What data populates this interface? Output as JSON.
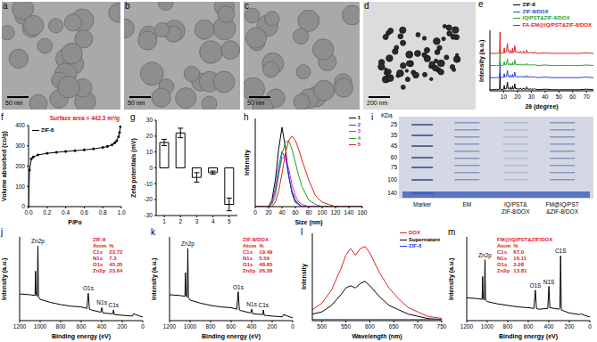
{
  "images": [
    {
      "label": "a",
      "scale_bar": "50 nm"
    },
    {
      "label": "b",
      "scale_bar": "50 nm"
    },
    {
      "label": "c",
      "scale_bar": "50 nm"
    },
    {
      "label": "d",
      "scale_bar": "200 nm"
    }
  ],
  "gel": {
    "label": "i",
    "unit": "KDa",
    "marker": [
      "25",
      "35",
      "45",
      "60",
      "75",
      "100",
      "140"
    ],
    "lanes": [
      "Marker",
      "EM",
      "IQ/PST&\nZIF-8/DOX",
      "FM@IQ/PST\n&ZIF-8/DOX"
    ]
  },
  "chart_data": [
    {
      "label": "e",
      "type": "line",
      "xlabel": "2θ (degree)",
      "ylabel": "Intensity (a.u.)",
      "legend": "top right",
      "tick_labels": "x",
      "xlim": [
        0,
        75
      ],
      "xticks": [
        10,
        20,
        30,
        40,
        50,
        60,
        70
      ],
      "ylim": [
        0,
        110
      ],
      "x": [
        0,
        5,
        6,
        7,
        7.3,
        7.6,
        8.5,
        10,
        10.4,
        10.8,
        12,
        12.7,
        13.2,
        14.2,
        14.7,
        15.2,
        16,
        16.4,
        16.8,
        17.5,
        18,
        18.5,
        21.5,
        22.1,
        22.7,
        24,
        24.5,
        25,
        26.2,
        26.7,
        27.2,
        29.1,
        29.6,
        30.1,
        32,
        32.4,
        32.8,
        35,
        40,
        45,
        50,
        55,
        60,
        65,
        70,
        75
      ],
      "series": [
        {
          "name": "ZIF-8",
          "color": "#000000",
          "values": [
            2,
            2,
            2,
            3,
            32,
            3,
            2,
            3,
            10,
            3,
            4,
            16,
            4,
            3,
            7,
            3,
            3,
            9,
            3,
            4,
            13,
            4,
            3,
            5,
            3,
            3,
            5,
            3,
            3,
            7,
            3,
            3,
            4,
            3,
            3,
            4,
            3,
            2,
            3,
            2,
            2,
            2,
            2,
            2,
            3,
            2
          ]
        },
        {
          "name": "ZIF-8/DOX",
          "color": "#2a3fd8",
          "values": [
            24,
            24,
            24,
            25,
            52,
            25,
            24,
            25,
            31,
            25,
            26,
            37,
            26,
            25,
            29,
            25,
            25,
            30,
            25,
            26,
            34,
            26,
            25,
            27,
            25,
            25,
            27,
            25,
            25,
            28,
            25,
            25,
            26,
            25,
            25,
            26,
            25,
            24,
            25,
            24,
            24,
            24,
            24,
            24,
            25,
            24
          ]
        },
        {
          "name": "IQ/PST&ZIF-8/DOX",
          "color": "#2ca02c",
          "values": [
            46,
            46,
            46,
            47,
            73,
            47,
            46,
            47,
            53,
            47,
            48,
            58,
            48,
            47,
            50,
            47,
            47,
            52,
            47,
            48,
            56,
            48,
            47,
            49,
            47,
            47,
            49,
            47,
            47,
            50,
            47,
            47,
            48,
            47,
            47,
            48,
            47,
            46,
            47,
            46,
            46,
            46,
            46,
            46,
            47,
            46
          ]
        },
        {
          "name": "FA-EM@IQ/PST&ZIF-8/DOX",
          "color": "#e0201a",
          "values": [
            68,
            68,
            68,
            69,
            107,
            69,
            68,
            69,
            78,
            69,
            71,
            86,
            71,
            69,
            74,
            69,
            69,
            77,
            69,
            71,
            82,
            71,
            69,
            72,
            69,
            69,
            72,
            69,
            69,
            74,
            69,
            69,
            71,
            69,
            69,
            71,
            69,
            68,
            69,
            68,
            68,
            68,
            68,
            68,
            69,
            68
          ]
        }
      ]
    },
    {
      "label": "f",
      "type": "line",
      "xlabel": "P/Po",
      "ylabel": "Volume absorbed (cc/g)",
      "annotation": "Surface area = 442.3 m²/g",
      "legend": "top left",
      "xlim": [
        0,
        1
      ],
      "xticks": [
        {
          "value": 0,
          "label": "0.0"
        },
        0.2,
        0.4,
        0.6,
        0.8,
        {
          "value": 1,
          "label": "1.0"
        }
      ],
      "ylim": [
        0,
        400
      ],
      "yticks": [
        0,
        100,
        200,
        300,
        400
      ],
      "x": [
        0,
        0.01,
        0.03,
        0.05,
        0.1,
        0.2,
        0.3,
        0.4,
        0.5,
        0.6,
        0.7,
        0.8,
        0.85,
        0.9,
        0.93,
        0.95,
        0.97,
        0.98,
        0.99
      ],
      "series": [
        {
          "name": "ZIF-8",
          "color": "#000000",
          "marker": "circle",
          "values": [
            0,
            180,
            235,
            245,
            255,
            263,
            268,
            272,
            276,
            280,
            285,
            292,
            297,
            305,
            315,
            325,
            345,
            365,
            395
          ]
        }
      ]
    },
    {
      "label": "g",
      "type": "bar",
      "ylabel": "Zeta potentials (mV)",
      "categories": [
        "1",
        "2",
        "3",
        "4",
        "5"
      ],
      "values": [
        16,
        22,
        -6,
        -3,
        -23
      ],
      "errors": [
        2,
        3,
        3,
        1,
        4
      ],
      "color": "#ffffff",
      "ylim": [
        -30,
        30
      ],
      "yticks": [
        -30,
        -20,
        -10,
        0,
        10,
        20,
        30
      ]
    },
    {
      "label": "h",
      "type": "line",
      "xlabel": "Size (nm)",
      "ylabel": "Intensity",
      "legend": "top right",
      "tick_labels": "x",
      "xlim": [
        0,
        160
      ],
      "xticks": [
        0,
        20,
        40,
        60,
        80,
        100,
        120,
        140,
        160
      ],
      "ylim": [
        0,
        40
      ],
      "x": [
        0,
        10,
        20,
        25,
        30,
        35,
        40,
        45,
        50,
        55,
        60,
        65,
        70,
        80,
        90,
        100,
        110,
        120,
        130,
        140,
        150,
        160
      ],
      "series": [
        {
          "name": "1",
          "color": "#000000",
          "values": [
            0,
            0,
            0,
            3,
            12,
            26,
            36,
            27,
            14,
            6,
            2,
            1,
            0,
            0,
            0,
            0,
            0,
            0,
            0,
            0,
            0,
            0
          ]
        },
        {
          "name": "2",
          "color": "#1f3fff",
          "values": [
            0,
            0,
            0,
            2,
            8,
            18,
            25,
            22,
            14,
            7,
            3,
            1,
            0,
            0,
            0,
            0,
            0,
            0,
            0,
            0,
            0,
            0
          ]
        },
        {
          "name": "3",
          "color": "#e020e0",
          "values": [
            0,
            0,
            0,
            2,
            7,
            15,
            22,
            23,
            17,
            10,
            5,
            2,
            1,
            0,
            0,
            0,
            0,
            0,
            0,
            0,
            0,
            0
          ]
        },
        {
          "name": "4",
          "color": "#20a020",
          "values": [
            0,
            0,
            0,
            1,
            5,
            14,
            24,
            29,
            30,
            26,
            20,
            14,
            9,
            3,
            1,
            0,
            0,
            0,
            0,
            0,
            0,
            0
          ]
        },
        {
          "name": "5",
          "color": "#e02020",
          "values": [
            0,
            0,
            0,
            0,
            2,
            7,
            15,
            24,
            30,
            32,
            30,
            26,
            21,
            12,
            5,
            2,
            1,
            0,
            0,
            0,
            0,
            0
          ]
        }
      ]
    },
    {
      "label": "j",
      "type": "line",
      "xlabel": "Binding energy (eV)",
      "ylabel": "Intensity (a.u.)",
      "title": "ZIF-8",
      "tick_labels": "x",
      "xlim": [
        1200,
        0
      ],
      "xticks": [
        1200,
        1000,
        800,
        600,
        400,
        200,
        0
      ],
      "ylim": [
        0,
        110
      ],
      "x": [
        1200,
        1100,
        1050,
        1045,
        1040,
        1028,
        1022,
        1016,
        1000,
        900,
        800,
        700,
        600,
        545,
        531,
        520,
        500,
        410,
        399,
        390,
        300,
        292,
        285,
        278,
        200,
        100,
        90,
        10,
        0
      ],
      "values": [
        35,
        34,
        33,
        65,
        34,
        32,
        98,
        31,
        28,
        24,
        21,
        19,
        18,
        16,
        36,
        15,
        14,
        11,
        17,
        10,
        9,
        9,
        14,
        8,
        7,
        6,
        9,
        5,
        5
      ],
      "color": "#000000",
      "annotations": [
        {
          "text": "Zn2p",
          "x": 1022
        },
        {
          "text": "O1s",
          "x": 531
        },
        {
          "text": "N1s",
          "x": 399
        },
        {
          "text": "C1s",
          "x": 285
        }
      ],
      "table": {
        "header": [
          "Atom",
          "%"
        ],
        "rows": [
          [
            "C1s",
            "23.72"
          ],
          [
            "N1s",
            "7.3"
          ],
          [
            "O1s",
            "45.35"
          ],
          [
            "Zn2p",
            "23.64"
          ]
        ]
      }
    },
    {
      "label": "k",
      "type": "line",
      "xlabel": "Binding energy (eV)",
      "ylabel": "Intensity (a.u.)",
      "title": "ZIF-8/DOX",
      "tick_labels": "x",
      "xlim": [
        1200,
        0
      ],
      "xticks": [
        1200,
        1000,
        800,
        600,
        400,
        200,
        0
      ],
      "ylim": [
        0,
        110
      ],
      "x": [
        1200,
        1100,
        1050,
        1045,
        1040,
        1028,
        1022,
        1016,
        1000,
        900,
        800,
        700,
        600,
        545,
        531,
        520,
        500,
        410,
        399,
        390,
        300,
        292,
        285,
        278,
        200,
        100,
        90,
        10,
        0
      ],
      "values": [
        34,
        33,
        32,
        63,
        33,
        31,
        95,
        30,
        27,
        23,
        20,
        18,
        17,
        15,
        38,
        14,
        13,
        10,
        15,
        9,
        8,
        8,
        14,
        7,
        6,
        5,
        8,
        4,
        4
      ],
      "color": "#000000",
      "annotations": [
        {
          "text": "Zn2p",
          "x": 1022
        },
        {
          "text": "O1s",
          "x": 531
        },
        {
          "text": "N1s",
          "x": 399
        },
        {
          "text": "C1s",
          "x": 285
        }
      ],
      "table": {
        "header": [
          "Atom",
          "%"
        ],
        "rows": [
          [
            "C1s",
            "19.49"
          ],
          [
            "N1s",
            "5.59"
          ],
          [
            "O1s",
            "48.65"
          ],
          [
            "Zn2p",
            "26.28"
          ]
        ]
      }
    },
    {
      "label": "l",
      "type": "line",
      "xlabel": "Wavelength (nm)",
      "ylabel": "Intensity",
      "legend": "top right",
      "tick_labels": "x",
      "xlim": [
        480,
        750
      ],
      "xticks": [
        500,
        550,
        600,
        650,
        700,
        750
      ],
      "ylim": [
        0,
        40
      ],
      "x": [
        480,
        500,
        520,
        540,
        550,
        560,
        570,
        580,
        590,
        600,
        620,
        640,
        660,
        680,
        700,
        720,
        750
      ],
      "series": [
        {
          "name": "DOX",
          "color": "#e02020",
          "values": [
            5,
            8,
            14,
            24,
            30,
            33,
            30,
            33,
            34,
            31,
            22,
            15,
            10,
            6,
            4,
            2,
            1
          ]
        },
        {
          "name": "Supernatant",
          "color": "#000000",
          "values": [
            3,
            4,
            7,
            12,
            15,
            16,
            15,
            17,
            18,
            16,
            11,
            7,
            5,
            3,
            2,
            1,
            0.5
          ]
        },
        {
          "name": "ZIF-8",
          "color": "#1f3fff",
          "values": [
            0.5,
            0.5,
            0.5,
            0.5,
            0.5,
            0.5,
            0.5,
            0.5,
            0.5,
            0.5,
            0.5,
            0.5,
            0.5,
            0.5,
            0.5,
            0.5,
            0.5
          ]
        }
      ]
    },
    {
      "label": "m",
      "type": "line",
      "xlabel": "Binding energy (eV)",
      "ylabel": "Intensity (a.u.)",
      "title": "FM@IQ/PST&ZIF/DOX",
      "tick_labels": "x",
      "xlim": [
        1200,
        0
      ],
      "xticks": [
        1200,
        1000,
        800,
        600,
        400,
        200,
        0
      ],
      "ylim": [
        0,
        110
      ],
      "x": [
        1200,
        1100,
        1050,
        1045,
        1040,
        1028,
        1022,
        1016,
        1000,
        900,
        800,
        700,
        600,
        545,
        531,
        520,
        500,
        410,
        399,
        390,
        300,
        292,
        285,
        278,
        200,
        100,
        90,
        10,
        0
      ],
      "values": [
        30,
        29,
        28,
        58,
        29,
        27,
        80,
        27,
        25,
        22,
        20,
        18,
        17,
        16,
        40,
        16,
        15,
        16,
        45,
        17,
        15,
        17,
        85,
        14,
        10,
        8,
        9,
        5,
        5
      ],
      "color": "#000000",
      "annotations": [
        {
          "text": "Zn2p",
          "x": 1022
        },
        {
          "text": "O1S",
          "x": 531
        },
        {
          "text": "N1S",
          "x": 399
        },
        {
          "text": "C1S",
          "x": 285
        }
      ],
      "table": {
        "header": [
          "Atom",
          "%"
        ],
        "rows": [
          [
            "C1s",
            "67.0"
          ],
          [
            "N1s",
            "16.11"
          ],
          [
            "O1s",
            "3.08"
          ],
          [
            "Zn2p",
            "13.81"
          ]
        ]
      }
    }
  ]
}
